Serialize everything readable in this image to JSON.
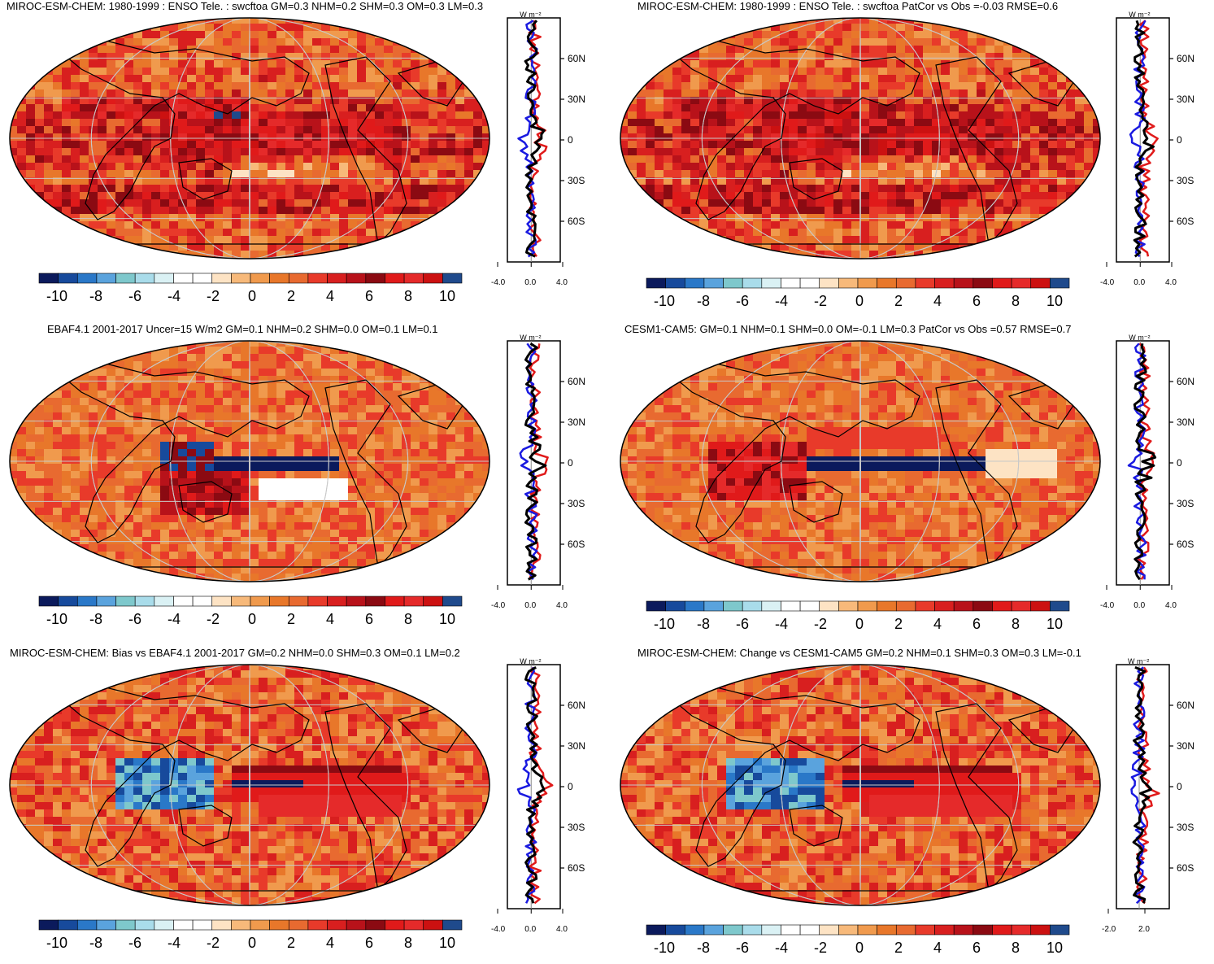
{
  "colorbar": {
    "colors": [
      "#0b1a5c",
      "#174a9c",
      "#2a78c8",
      "#5aa3dd",
      "#7ec8cc",
      "#a9dcea",
      "#daf1f4",
      "#ffffff",
      "#ffffff",
      "#fde3c4",
      "#f7b97a",
      "#f09a4d",
      "#e8772a",
      "#e86a30",
      "#e83a2a",
      "#d81f1f",
      "#b8121a",
      "#8b0a12",
      "#e01a1a",
      "#e52a2a",
      "#cc1111",
      "#1f4a8c"
    ],
    "tick_labels": [
      "-10",
      "-8",
      "-6",
      "-4",
      "-2",
      "0",
      "2",
      "4",
      "6",
      "8",
      "10"
    ]
  },
  "profile_colors": {
    "model": "#e01a1a",
    "obs": "#1a1ae0",
    "ref": "#000000"
  },
  "panels": [
    {
      "id": "p1",
      "title": "MIROC-ESM-CHEM: 1980-1999 : ENSO Tele. : swcftoa GM=0.3 NHM=0.2 SHM=0.3 OM=0.3 LM=0.3",
      "units": "W m⁻²",
      "lat_labels": [
        "60N",
        "30N",
        "0",
        "30S",
        "60S"
      ],
      "x_labels": [
        "-4.0",
        "0.0",
        "4.0"
      ],
      "pattern": "model"
    },
    {
      "id": "p2",
      "title": "MIROC-ESM-CHEM: 1980-1999 : ENSO Tele. : swcftoa PatCor vs Obs =-0.03 RMSE=0.6",
      "units": "W m⁻²",
      "lat_labels": [
        "60N",
        "30N",
        "0",
        "30S",
        "60S"
      ],
      "x_labels": [
        "-4.0",
        "0.0",
        "4.0"
      ],
      "pattern": "model"
    },
    {
      "id": "p3",
      "title": "EBAF4.1 2001-2017 Uncer=15 W/m2 GM=0.1 NHM=0.2 SHM=0.0 OM=0.1 LM=0.1",
      "units": "W m⁻²",
      "lat_labels": [
        "60N",
        "30N",
        "0",
        "30S",
        "60S"
      ],
      "x_labels": [
        "-4.0",
        "0.0",
        "4.0"
      ],
      "pattern": "obs"
    },
    {
      "id": "p4",
      "title": "CESM1-CAM5: GM=0.1 NHM=0.1 SHM=0.0 OM=-0.1 LM=0.3 PatCor vs Obs =0.57 RMSE=0.7",
      "units": "W m⁻²",
      "lat_labels": [
        "60N",
        "30N",
        "0",
        "30S",
        "60S"
      ],
      "x_labels": [
        "-4.0",
        "0.0",
        "4.0"
      ],
      "pattern": "cesm"
    },
    {
      "id": "p5",
      "title": "MIROC-ESM-CHEM: Bias vs EBAF4.1 2001-2017 GM=0.2 NHM=0.0 SHM=0.3 OM=0.1 LM=0.2",
      "units": "W m⁻²",
      "lat_labels": [
        "60N",
        "30N",
        "0",
        "30S",
        "60S"
      ],
      "x_labels": [
        "-4.0",
        "0.0",
        "4.0"
      ],
      "pattern": "bias"
    },
    {
      "id": "p6",
      "title": "MIROC-ESM-CHEM: Change vs CESM1-CAM5 GM=0.2 NHM=0.1 SHM=0.3 OM=0.3 LM=-0.1",
      "units": "W m⁻²",
      "lat_labels": [
        "60N",
        "30N",
        "0",
        "30S",
        "60S"
      ],
      "x_labels": [
        "-2.0",
        "2.0"
      ],
      "pattern": "bias"
    }
  ],
  "chart_data": [
    {
      "type": "heatmap",
      "title": "MIROC-ESM-CHEM: 1980-1999 : ENSO Tele. : swcftoa GM=0.3 NHM=0.2 SHM=0.3 OM=0.3 LM=0.3",
      "colorbar_range": [
        -10,
        10
      ],
      "xlabel": "W m-2",
      "ylim": [
        -90,
        90
      ]
    },
    {
      "type": "heatmap",
      "title": "MIROC-ESM-CHEM: 1980-1999 : ENSO Tele. : swcftoa PatCor vs Obs =-0.03 RMSE=0.6",
      "colorbar_range": [
        -10,
        10
      ],
      "xlabel": "W m-2",
      "ylim": [
        -90,
        90
      ]
    },
    {
      "type": "heatmap",
      "title": "EBAF4.1 2001-2017 Uncer=15 W/m2 GM=0.1 NHM=0.2 SHM=0.0 OM=0.1 LM=0.1",
      "colorbar_range": [
        -10,
        10
      ],
      "xlabel": "W m-2",
      "ylim": [
        -90,
        90
      ]
    },
    {
      "type": "heatmap",
      "title": "CESM1-CAM5: GM=0.1 NHM=0.1 SHM=0.0 OM=-0.1 LM=0.3 PatCor vs Obs =0.57 RMSE=0.7",
      "colorbar_range": [
        -10,
        10
      ],
      "xlabel": "W m-2",
      "ylim": [
        -90,
        90
      ]
    },
    {
      "type": "heatmap",
      "title": "MIROC-ESM-CHEM: Bias vs EBAF4.1 2001-2017 GM=0.2 NHM=0.0 SHM=0.3 OM=0.1 LM=0.2",
      "colorbar_range": [
        -10,
        10
      ],
      "xlabel": "W m-2",
      "ylim": [
        -90,
        90
      ]
    },
    {
      "type": "heatmap",
      "title": "MIROC-ESM-CHEM: Change vs CESM1-CAM5 GM=0.2 NHM=0.1 SHM=0.3 OM=0.3 LM=-0.1",
      "colorbar_range": [
        -10,
        10
      ],
      "xlabel": "W m-2",
      "ylim": [
        -90,
        90
      ]
    }
  ]
}
